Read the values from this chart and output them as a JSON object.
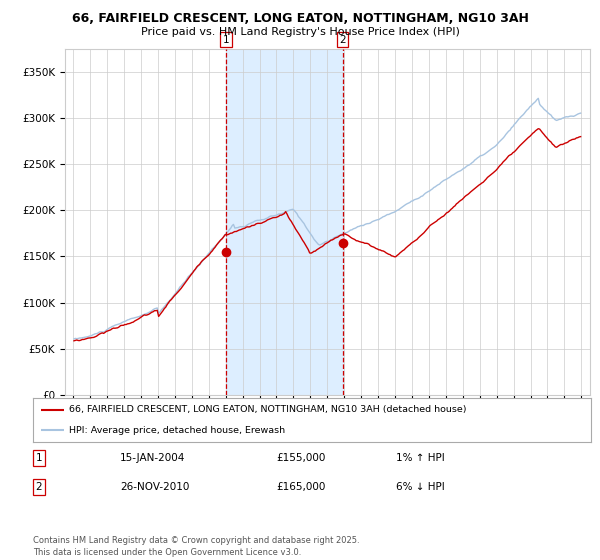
{
  "title_line1": "66, FAIRFIELD CRESCENT, LONG EATON, NOTTINGHAM, NG10 3AH",
  "title_line2": "Price paid vs. HM Land Registry's House Price Index (HPI)",
  "legend_red": "66, FAIRFIELD CRESCENT, LONG EATON, NOTTINGHAM, NG10 3AH (detached house)",
  "legend_blue": "HPI: Average price, detached house, Erewash",
  "marker1_date": "15-JAN-2004",
  "marker1_price": "£155,000",
  "marker1_hpi": "1% ↑ HPI",
  "marker2_date": "26-NOV-2010",
  "marker2_price": "£165,000",
  "marker2_hpi": "6% ↓ HPI",
  "footer": "Contains HM Land Registry data © Crown copyright and database right 2025.\nThis data is licensed under the Open Government Licence v3.0.",
  "sale1_year": 2004.04,
  "sale1_price": 155000,
  "sale2_year": 2010.9,
  "sale2_price": 165000,
  "shaded_start": 2004.04,
  "shaded_end": 2010.9,
  "red_color": "#cc0000",
  "blue_color": "#a8c4e0",
  "shade_color": "#ddeeff",
  "background_color": "#ffffff",
  "grid_color": "#cccccc",
  "ylim": [
    0,
    375000
  ],
  "yticks": [
    0,
    50000,
    100000,
    150000,
    200000,
    250000,
    300000,
    350000
  ],
  "ytick_labels": [
    "£0",
    "£50K",
    "£100K",
    "£150K",
    "£200K",
    "£250K",
    "£300K",
    "£350K"
  ],
  "xlim_start": 1994.5,
  "xlim_end": 2025.5
}
